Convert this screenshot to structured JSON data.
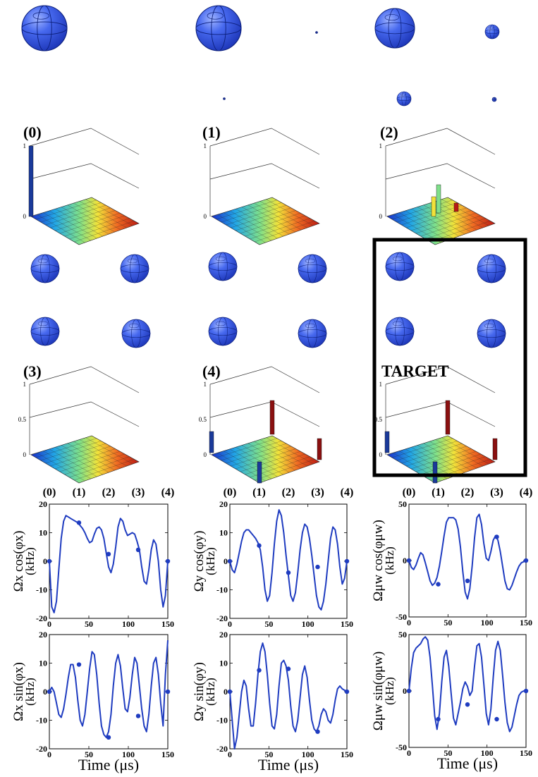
{
  "colors": {
    "sphere_fill": "#3a5fe0",
    "sphere_dark": "#0c1f7a",
    "bar_blue": "#1a3a9a",
    "bar_red": "#8a1010",
    "curve_blue": "#1f3cc0",
    "target_frame": "#000000"
  },
  "panels": [
    {
      "label": "(0)",
      "z_ticks": [
        "0",
        "1"
      ]
    },
    {
      "label": "(1)",
      "z_ticks": [
        "0",
        "1"
      ]
    },
    {
      "label": "(2)",
      "z_ticks": [
        "0",
        "1"
      ]
    },
    {
      "label": "(3)",
      "z_ticks": [
        "0",
        "0.5",
        "1"
      ]
    },
    {
      "label": "(4)",
      "z_ticks": [
        "0",
        "0.5",
        "1"
      ]
    },
    {
      "label": "TARGET",
      "z_ticks": [
        "0",
        "0.5",
        "1"
      ]
    }
  ],
  "chart_data": [
    {
      "type": "line",
      "ylabel": "Ωx cos(φx)",
      "yunit": "(kHz)",
      "xlabel": "",
      "xlim": [
        0,
        150
      ],
      "ylim": [
        -20,
        20
      ],
      "xticks": [
        "0",
        "50",
        "100",
        "150"
      ],
      "yticks": [
        "-20",
        "-10",
        "0",
        "10",
        "20"
      ],
      "top_markers": [
        "(0)",
        "(1)",
        "(2)",
        "(3)",
        "(4)"
      ],
      "x": [
        0,
        3,
        6,
        9,
        12,
        15,
        18,
        21,
        24,
        27,
        30,
        33,
        36,
        39,
        42,
        45,
        48,
        51,
        54,
        57,
        60,
        63,
        66,
        69,
        72,
        75,
        78,
        81,
        84,
        87,
        90,
        93,
        96,
        99,
        102,
        105,
        108,
        111,
        114,
        117,
        120,
        123,
        126,
        129,
        132,
        135,
        138,
        141,
        144,
        147,
        150
      ],
      "y": [
        0,
        -16,
        -18,
        -14,
        -3,
        8,
        14,
        16,
        15.5,
        15,
        14.5,
        14,
        13.5,
        12.5,
        11.5,
        10,
        8,
        6.5,
        7,
        9.5,
        11.5,
        12,
        11,
        8,
        3,
        -2,
        -4,
        -1,
        5,
        12,
        15,
        14,
        11,
        9,
        9.5,
        10,
        9.5,
        7,
        4,
        -2,
        -7,
        -8,
        -3,
        4,
        7.5,
        6,
        0,
        -10,
        -16,
        -12,
        0
      ],
      "points": [
        {
          "x": 0,
          "y": 0
        },
        {
          "x": 37.5,
          "y": 13.5
        },
        {
          "x": 75,
          "y": 2.5
        },
        {
          "x": 112.5,
          "y": 4
        },
        {
          "x": 150,
          "y": 0
        }
      ]
    },
    {
      "type": "line",
      "ylabel": "Ωy cos(φy)",
      "yunit": "(kHz)",
      "xlabel": "",
      "xlim": [
        0,
        150
      ],
      "ylim": [
        -20,
        20
      ],
      "xticks": [
        "0",
        "50",
        "100",
        "150"
      ],
      "yticks": [
        "-20",
        "-10",
        "0",
        "10",
        "20"
      ],
      "top_markers": [
        "(0)",
        "(1)",
        "(2)",
        "(3)",
        "(4)"
      ],
      "x": [
        0,
        3,
        6,
        9,
        12,
        15,
        18,
        21,
        24,
        27,
        30,
        33,
        36,
        39,
        42,
        45,
        48,
        51,
        54,
        57,
        60,
        63,
        66,
        69,
        72,
        75,
        78,
        81,
        84,
        87,
        90,
        93,
        96,
        99,
        102,
        105,
        108,
        111,
        114,
        117,
        120,
        123,
        126,
        129,
        132,
        135,
        138,
        141,
        144,
        147,
        150
      ],
      "y": [
        0,
        -3,
        -4,
        -1,
        3,
        7,
        10,
        11,
        11,
        10,
        9,
        8,
        6.5,
        4,
        -2,
        -10,
        -14,
        -12,
        -4,
        6,
        14,
        18,
        16,
        10,
        2,
        -5,
        -12,
        -14,
        -11,
        -4,
        4,
        10,
        13,
        12,
        8,
        2,
        -5,
        -12,
        -16,
        -17,
        -14,
        -8,
        0,
        8,
        12,
        11,
        6,
        -2,
        -8,
        -6,
        0
      ],
      "points": [
        {
          "x": 0,
          "y": 0
        },
        {
          "x": 37.5,
          "y": 5.5
        },
        {
          "x": 75,
          "y": -4
        },
        {
          "x": 112.5,
          "y": -2
        },
        {
          "x": 150,
          "y": 0
        }
      ]
    },
    {
      "type": "line",
      "ylabel": "Ωμw cos(φμw)",
      "yunit": "(kHz)",
      "xlabel": "",
      "xlim": [
        0,
        150
      ],
      "ylim": [
        -50,
        50
      ],
      "xticks": [
        "0",
        "50",
        "100",
        "150"
      ],
      "yticks": [
        "-50",
        "0",
        "50"
      ],
      "top_markers": [
        "(0)",
        "(1)",
        "(2)",
        "(3)",
        "(4)"
      ],
      "x": [
        0,
        3,
        6,
        9,
        12,
        15,
        18,
        21,
        24,
        27,
        30,
        33,
        36,
        39,
        42,
        45,
        48,
        51,
        54,
        57,
        60,
        63,
        66,
        69,
        72,
        75,
        78,
        81,
        84,
        87,
        90,
        93,
        96,
        99,
        102,
        105,
        108,
        111,
        114,
        117,
        120,
        123,
        126,
        129,
        132,
        135,
        138,
        141,
        144,
        147,
        150
      ],
      "y": [
        0,
        -6,
        -8,
        -4,
        2,
        7,
        5,
        -2,
        -10,
        -18,
        -22,
        -20,
        -15,
        -5,
        8,
        22,
        34,
        38,
        38,
        38,
        36,
        28,
        12,
        -10,
        -28,
        -34,
        -25,
        -5,
        20,
        38,
        41,
        32,
        15,
        2,
        0,
        8,
        18,
        22,
        18,
        8,
        -5,
        -18,
        -25,
        -26,
        -22,
        -16,
        -10,
        -5,
        -2,
        -1,
        0
      ],
      "points": [
        {
          "x": 0,
          "y": 0
        },
        {
          "x": 37.5,
          "y": -21
        },
        {
          "x": 75,
          "y": -18
        },
        {
          "x": 112.5,
          "y": 21
        },
        {
          "x": 150,
          "y": 0
        }
      ]
    },
    {
      "type": "line",
      "ylabel": "Ωx sin(φx)",
      "yunit": "(kHz)",
      "xlabel": "Time (μs)",
      "xlim": [
        0,
        150
      ],
      "ylim": [
        -20,
        20
      ],
      "xticks": [
        "0",
        "50",
        "100",
        "150"
      ],
      "yticks": [
        "-20",
        "-10",
        "0",
        "10",
        "20"
      ],
      "points": [
        {
          "x": 0,
          "y": 0
        },
        {
          "x": 37.5,
          "y": 9.5
        },
        {
          "x": 75,
          "y": -16
        },
        {
          "x": 112.5,
          "y": -8.5
        },
        {
          "x": 150,
          "y": 0
        }
      ],
      "x": [
        0,
        3,
        6,
        9,
        12,
        15,
        18,
        21,
        24,
        27,
        30,
        33,
        36,
        39,
        42,
        45,
        48,
        51,
        54,
        57,
        60,
        63,
        66,
        69,
        72,
        75,
        78,
        81,
        84,
        87,
        90,
        93,
        96,
        99,
        102,
        105,
        108,
        111,
        114,
        117,
        120,
        123,
        126,
        129,
        132,
        135,
        138,
        141,
        144,
        147,
        150
      ],
      "y": [
        0,
        1.5,
        0,
        -4,
        -8,
        -9,
        -6,
        -1,
        5,
        9.5,
        9.5,
        5,
        -3,
        -10,
        -12,
        -8,
        0,
        8,
        14,
        13,
        6,
        -4,
        -12,
        -15,
        -16,
        -14,
        -8,
        2,
        10,
        13,
        9,
        1,
        -6,
        -7,
        -2,
        6,
        12,
        10,
        2,
        -6,
        -12,
        -14,
        -8,
        2,
        10,
        12,
        6,
        -4,
        -12,
        6,
        18
      ]
    },
    {
      "type": "line",
      "ylabel": "Ωy sin(φy)",
      "yunit": "(kHz)",
      "xlabel": "Time (μs)",
      "xlim": [
        0,
        150
      ],
      "ylim": [
        -20,
        20
      ],
      "xticks": [
        "0",
        "50",
        "100",
        "150"
      ],
      "yticks": [
        "-20",
        "-10",
        "0",
        "10",
        "20"
      ],
      "points": [
        {
          "x": 0,
          "y": 0
        },
        {
          "x": 37.5,
          "y": 7.5
        },
        {
          "x": 75,
          "y": 8
        },
        {
          "x": 112.5,
          "y": -14
        },
        {
          "x": 150,
          "y": 0
        }
      ],
      "x": [
        0,
        3,
        6,
        9,
        12,
        15,
        18,
        21,
        24,
        27,
        30,
        33,
        36,
        39,
        42,
        45,
        48,
        51,
        54,
        57,
        60,
        63,
        66,
        69,
        72,
        75,
        78,
        81,
        84,
        87,
        90,
        93,
        96,
        99,
        102,
        105,
        108,
        111,
        114,
        117,
        120,
        123,
        126,
        129,
        132,
        135,
        138,
        141,
        144,
        147,
        150
      ],
      "y": [
        0,
        -10,
        -20,
        -16,
        -8,
        0,
        4,
        2,
        -6,
        -12,
        -12,
        -4,
        6,
        14,
        17,
        14,
        6,
        -4,
        -12,
        -13,
        -8,
        2,
        10,
        11,
        9,
        4,
        -5,
        -12,
        -14,
        -10,
        -2,
        6,
        9,
        5,
        -3,
        -10,
        -13,
        -14,
        -12,
        -8,
        -6,
        -7,
        -10,
        -11,
        -8,
        -3,
        1,
        2,
        1,
        0.5,
        0
      ]
    },
    {
      "type": "line",
      "ylabel": "Ωμw sin(φμw)",
      "yunit": "(kHz)",
      "xlabel": "Time (μs)",
      "xlim": [
        0,
        150
      ],
      "ylim": [
        -50,
        50
      ],
      "xticks": [
        "0",
        "50",
        "100",
        "150"
      ],
      "yticks": [
        "-50",
        "0",
        "50"
      ],
      "points": [
        {
          "x": 0,
          "y": 0
        },
        {
          "x": 37.5,
          "y": -25
        },
        {
          "x": 75,
          "y": -12
        },
        {
          "x": 112.5,
          "y": -25
        },
        {
          "x": 150,
          "y": 0
        }
      ],
      "x": [
        0,
        3,
        6,
        9,
        12,
        15,
        18,
        21,
        24,
        27,
        30,
        33,
        36,
        39,
        42,
        45,
        48,
        51,
        54,
        57,
        60,
        63,
        66,
        69,
        72,
        75,
        78,
        81,
        84,
        87,
        90,
        93,
        96,
        99,
        102,
        105,
        108,
        111,
        114,
        117,
        120,
        123,
        126,
        129,
        132,
        135,
        138,
        141,
        144,
        147,
        150
      ],
      "y": [
        0,
        20,
        34,
        38,
        40,
        42,
        46,
        48,
        45,
        30,
        5,
        -22,
        -34,
        -20,
        8,
        30,
        36,
        22,
        -2,
        -24,
        -30,
        -20,
        -10,
        2,
        8,
        4,
        -4,
        0,
        22,
        40,
        42,
        30,
        6,
        -20,
        -30,
        -16,
        12,
        36,
        44,
        36,
        14,
        -10,
        -28,
        -36,
        -32,
        -22,
        -12,
        -4,
        -1,
        0,
        0
      ]
    }
  ],
  "panel_labels": [
    "(0)",
    "(1)",
    "(2)",
    "(3)",
    "(4)",
    "TARGET"
  ]
}
